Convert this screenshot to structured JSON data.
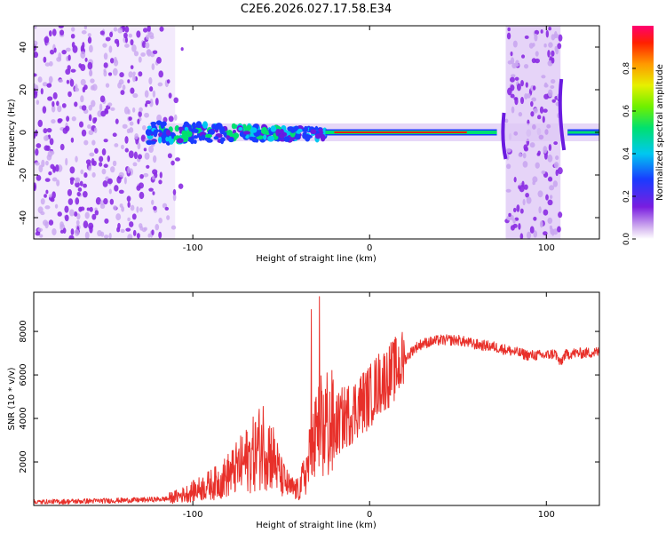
{
  "figure": {
    "title": "C2E6.2026.027.17.58.E34"
  },
  "chart_data": [
    {
      "type": "heatmap",
      "xlabel": "Height of straight line (km)",
      "ylabel": "Frequency (Hz)",
      "xlim": [
        -190,
        130
      ],
      "ylim": [
        -50,
        50
      ],
      "xticks": [
        -100,
        0,
        100
      ],
      "xtick_labels": [
        "-100",
        "0",
        "100"
      ],
      "yticks": [
        -40,
        -20,
        0,
        20,
        40
      ],
      "ytick_labels": [
        "-40",
        "-20",
        "0",
        "20",
        "40"
      ],
      "colorbar": {
        "label": "Normalized spectral amplitude",
        "range": [
          0,
          1
        ],
        "ticks": [
          0,
          0.2,
          0.4,
          0.6,
          0.8
        ],
        "tick_labels": [
          "0.0",
          "0.2",
          "0.4",
          "0.6",
          "0.8"
        ]
      },
      "features": {
        "noise_region_left_km": [
          -190,
          -110
        ],
        "signal_band_km": [
          -125,
          130
        ],
        "noise_region_right_km": [
          77,
          108
        ],
        "line_frequency_hz": 0
      }
    },
    {
      "type": "line",
      "xlabel": "Height of straight line (km)",
      "ylabel": "SNR (10 * v/v)",
      "xlim": [
        -190,
        130
      ],
      "ylim": [
        0,
        9800
      ],
      "xticks": [
        -100,
        0,
        100
      ],
      "xtick_labels": [
        "-100",
        "0",
        "100"
      ],
      "yticks": [
        2000,
        4000,
        6000,
        8000
      ],
      "ytick_labels": [
        "2000",
        "4000",
        "6000",
        "8000"
      ],
      "series": [
        {
          "name": "SNR",
          "color": "#e8302a",
          "x": [
            -190,
            -160,
            -130,
            -115,
            -105,
            -95,
            -85,
            -75,
            -65,
            -60,
            -55,
            -50,
            -45,
            -40,
            -35,
            -30,
            -25,
            -20,
            -15,
            -10,
            -5,
            0,
            5,
            10,
            15,
            20,
            25,
            30,
            40,
            50,
            60,
            70,
            80,
            90,
            100,
            105,
            108,
            110,
            115,
            120,
            130
          ],
          "y": [
            150,
            200,
            250,
            300,
            500,
            800,
            1100,
            1700,
            2400,
            2900,
            2300,
            1300,
            800,
            700,
            1800,
            3100,
            3800,
            3500,
            4000,
            4300,
            4700,
            5000,
            5600,
            5900,
            6300,
            6700,
            7200,
            7450,
            7600,
            7600,
            7400,
            7300,
            7100,
            6900,
            6900,
            7000,
            6500,
            6900,
            7000,
            7000,
            7050
          ]
        }
      ]
    }
  ],
  "colors": {
    "line": "#e8302a",
    "axis": "#000000",
    "noise": "#8a2be2"
  }
}
